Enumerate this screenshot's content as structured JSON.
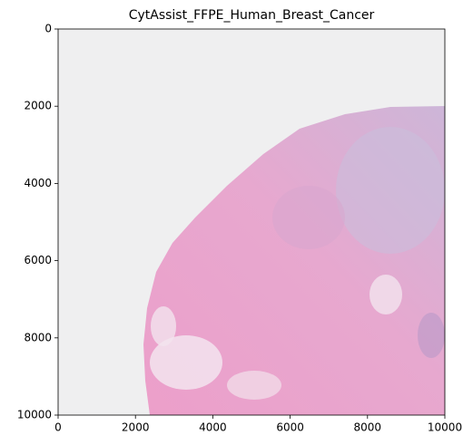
{
  "chart_data": {
    "type": "image",
    "title": "CytAssist_FFPE_Human_Breast_Cancer",
    "xlim": [
      0,
      10000
    ],
    "ylim": [
      10000,
      0
    ],
    "xticks": [
      0,
      2000,
      4000,
      6000,
      8000,
      10000
    ],
    "yticks": [
      0,
      2000,
      4000,
      6000,
      8000,
      10000
    ]
  }
}
